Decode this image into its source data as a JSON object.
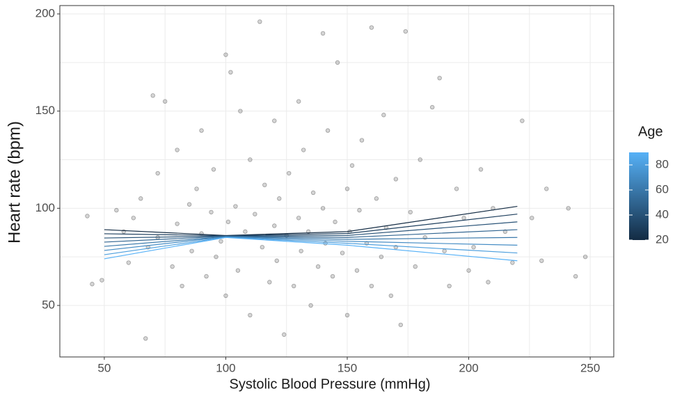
{
  "chart_data": {
    "type": "scatter",
    "xlabel": "Systolic Blood Pressure (mmHg)",
    "ylabel": "Heart rate (bpm)",
    "xlim": [
      31.7,
      259.7
    ],
    "ylim": [
      23.5,
      204.3
    ],
    "xticks": [
      50,
      100,
      150,
      200,
      250
    ],
    "yticks": [
      50,
      100,
      150,
      200
    ],
    "grid": true,
    "point_color": "#404040",
    "x": [
      43,
      45,
      49,
      55,
      58,
      60,
      62,
      65,
      67,
      68,
      70,
      72,
      72,
      75,
      78,
      80,
      80,
      82,
      85,
      86,
      88,
      90,
      90,
      92,
      94,
      95,
      96,
      98,
      100,
      100,
      101,
      102,
      104,
      105,
      106,
      108,
      110,
      110,
      112,
      114,
      115,
      116,
      118,
      120,
      120,
      121,
      122,
      124,
      125,
      126,
      128,
      130,
      130,
      131,
      132,
      134,
      135,
      136,
      138,
      140,
      140,
      141,
      142,
      144,
      145,
      146,
      148,
      150,
      150,
      151,
      152,
      154,
      155,
      156,
      158,
      160,
      160,
      162,
      164,
      165,
      166,
      168,
      170,
      170,
      172,
      174,
      176,
      178,
      180,
      182,
      185,
      188,
      190,
      192,
      195,
      198,
      200,
      202,
      205,
      208,
      210,
      215,
      218,
      222,
      226,
      230,
      232,
      241,
      244,
      248
    ],
    "y": [
      96,
      61,
      63,
      99,
      88,
      72,
      95,
      105,
      33,
      80,
      158,
      85,
      118,
      155,
      70,
      92,
      130,
      60,
      102,
      78,
      110,
      87,
      140,
      65,
      98,
      120,
      75,
      83,
      179,
      55,
      93,
      170,
      101,
      68,
      150,
      88,
      125,
      45,
      97,
      196,
      80,
      112,
      62,
      91,
      145,
      73,
      105,
      35,
      86,
      118,
      60,
      95,
      155,
      78,
      130,
      88,
      50,
      108,
      70,
      190,
      100,
      82,
      140,
      65,
      93,
      175,
      77,
      110,
      45,
      88,
      122,
      68,
      99,
      135,
      82,
      193,
      60,
      105,
      75,
      148,
      90,
      55,
      115,
      80,
      40,
      191,
      98,
      70,
      125,
      85,
      152,
      167,
      78,
      60,
      110,
      95,
      68,
      80,
      120,
      62,
      100,
      88,
      72,
      145,
      95,
      73,
      110,
      100,
      65,
      75
    ],
    "line_x": [
      50,
      100,
      150,
      220
    ],
    "lines": [
      {
        "age": 20,
        "y": [
          89,
          86,
          88,
          101
        ]
      },
      {
        "age": 30,
        "y": [
          86.9,
          85.9,
          87,
          97
        ]
      },
      {
        "age": 40,
        "y": [
          84.7,
          85.7,
          86,
          93
        ]
      },
      {
        "age": 50,
        "y": [
          82.6,
          85.6,
          85,
          89
        ]
      },
      {
        "age": 60,
        "y": [
          80.4,
          85.4,
          84,
          85
        ]
      },
      {
        "age": 70,
        "y": [
          78.3,
          85.3,
          83,
          81
        ]
      },
      {
        "age": 80,
        "y": [
          76.1,
          85.1,
          82,
          77
        ]
      },
      {
        "age": 90,
        "y": [
          74,
          85,
          81,
          73
        ]
      }
    ],
    "colorbar": {
      "title": "Age",
      "lim": [
        20,
        90
      ],
      "ticks": [
        20,
        40,
        60,
        80
      ],
      "colors": [
        "#132b43",
        "#56b1f7"
      ]
    }
  }
}
